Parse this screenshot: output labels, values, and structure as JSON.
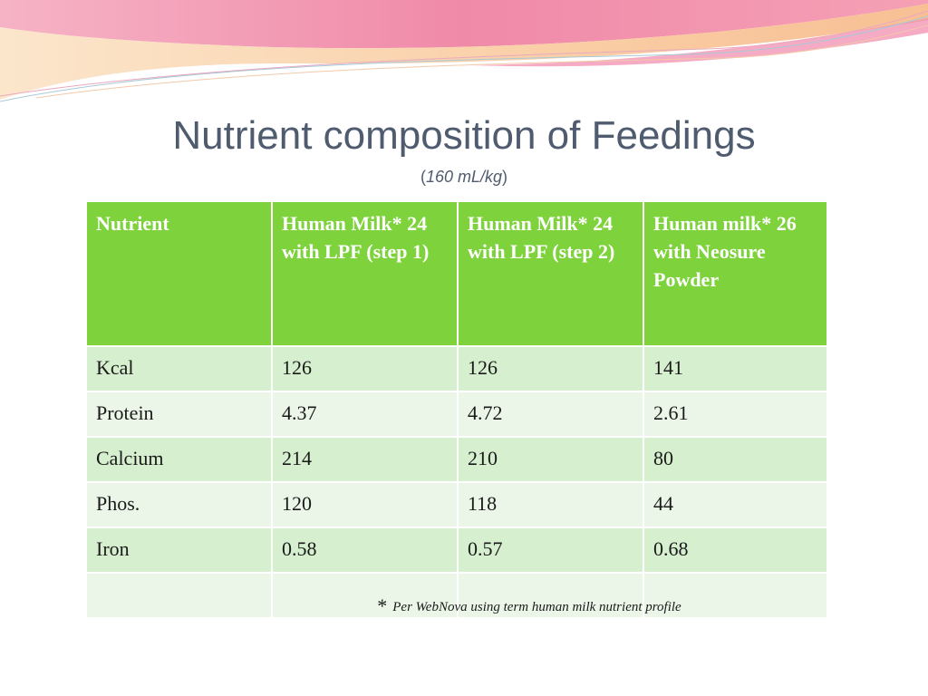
{
  "slide": {
    "title": "Nutrient composition of Feedings",
    "subtitle_open": "(",
    "subtitle_unit": "160 mL/kg",
    "subtitle_close": ")"
  },
  "table": {
    "headers": [
      "Nutrient",
      "Human Milk* 24 with LPF (step 1)",
      "Human Milk* 24 with LPF (step 2)",
      "Human milk* 26 with Neosure Powder"
    ],
    "rows": [
      [
        "Kcal",
        "126",
        "126",
        "141"
      ],
      [
        "Protein",
        "4.37",
        "4.72",
        "2.61"
      ],
      [
        "Calcium",
        "214",
        "210",
        "80"
      ],
      [
        "Phos.",
        "120",
        "118",
        "44"
      ],
      [
        "Iron",
        "0.58",
        "0.57",
        "0.68"
      ]
    ]
  },
  "footnote": {
    "marker": "*",
    "text": "Per WebNova using term human milk nutrient profile"
  },
  "colors": {
    "header_green": "#7ed23c",
    "row_dark": "#d6efcf",
    "row_light": "#ebf6e8",
    "title_gray": "#4f5b6e",
    "swoosh_pink": "#f07aa0",
    "swoosh_peach": "#f8c69a"
  }
}
